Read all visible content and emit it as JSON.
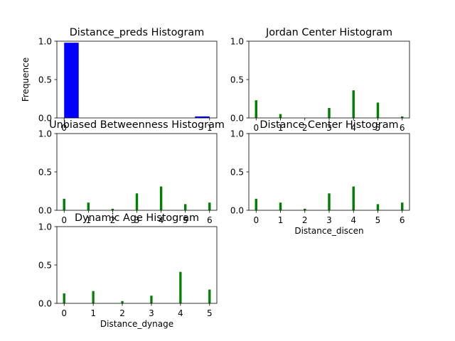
{
  "chart_data": [
    {
      "type": "bar",
      "title": "Distance_preds Histogram",
      "xlabel": "",
      "ylabel": "Frequence",
      "ylim": [
        0,
        1
      ],
      "xlim": [
        -0.05,
        1.05
      ],
      "yticks": [
        0.0,
        0.5,
        1.0
      ],
      "ytick_labels": [
        "0.0",
        "0.5",
        "1.0"
      ],
      "xticks": [
        0,
        1
      ],
      "xtick_labels": [
        "0",
        "1"
      ],
      "bar_width": 0.1,
      "x": [
        0.05,
        0.95
      ],
      "values": [
        0.98,
        0.02
      ],
      "color": "#0000ff"
    },
    {
      "type": "bar",
      "title": "Jordan Center Histogram",
      "xlabel": "",
      "ylabel": "",
      "ylim": [
        0,
        1
      ],
      "xlim": [
        -0.3,
        6.3
      ],
      "yticks": [
        0.0,
        0.5,
        1.0
      ],
      "ytick_labels": [
        "0.0",
        "0.5",
        "1.0"
      ],
      "xticks": [
        0,
        1,
        2,
        3,
        4,
        5,
        6
      ],
      "xtick_labels": [
        "0",
        "1",
        "2",
        "3",
        "4",
        "5",
        "6"
      ],
      "bar_width": 0.1,
      "x": [
        0,
        1,
        3,
        4,
        5,
        6
      ],
      "values": [
        0.23,
        0.05,
        0.13,
        0.36,
        0.2,
        0.02
      ],
      "color": "#008000"
    },
    {
      "type": "bar",
      "title": "Unbiased Betweenness Histogram",
      "xlabel": "",
      "ylabel": "",
      "ylim": [
        0,
        1
      ],
      "xlim": [
        -0.3,
        6.3
      ],
      "yticks": [
        0.0,
        0.5,
        1.0
      ],
      "ytick_labels": [
        "0.0",
        "0.5",
        "1.0"
      ],
      "xticks": [
        0,
        1,
        2,
        3,
        4,
        5,
        6
      ],
      "xtick_labels": [
        "0",
        "1",
        "2",
        "3",
        "4",
        "5",
        "6"
      ],
      "bar_width": 0.1,
      "x": [
        0,
        1,
        2,
        3,
        4,
        5,
        6
      ],
      "values": [
        0.15,
        0.1,
        0.02,
        0.22,
        0.31,
        0.08,
        0.1
      ],
      "color": "#008000"
    },
    {
      "type": "bar",
      "title": "Distance Center Histogram",
      "xlabel": "Distance_discen",
      "ylabel": "",
      "ylim": [
        0,
        1
      ],
      "xlim": [
        -0.3,
        6.3
      ],
      "yticks": [
        0.0,
        0.5,
        1.0
      ],
      "ytick_labels": [
        "0.0",
        "0.5",
        "1.0"
      ],
      "xticks": [
        0,
        1,
        2,
        3,
        4,
        5,
        6
      ],
      "xtick_labels": [
        "0",
        "1",
        "2",
        "3",
        "4",
        "5",
        "6"
      ],
      "bar_width": 0.1,
      "x": [
        0,
        1,
        2,
        3,
        4,
        5,
        6
      ],
      "values": [
        0.15,
        0.1,
        0.02,
        0.22,
        0.31,
        0.08,
        0.1
      ],
      "color": "#008000"
    },
    {
      "type": "bar",
      "title": "Dynamic Age Histogram",
      "xlabel": "Distance_dynage",
      "ylabel": "",
      "ylim": [
        0,
        1
      ],
      "xlim": [
        -0.25,
        5.25
      ],
      "yticks": [
        0.0,
        0.5,
        1.0
      ],
      "ytick_labels": [
        "0.0",
        "0.5",
        "1.0"
      ],
      "xticks": [
        0,
        1,
        2,
        3,
        4,
        5
      ],
      "xtick_labels": [
        "0",
        "1",
        "2",
        "3",
        "4",
        "5"
      ],
      "bar_width": 0.08,
      "x": [
        0,
        1,
        2,
        3,
        4,
        5
      ],
      "values": [
        0.13,
        0.16,
        0.03,
        0.1,
        0.41,
        0.18
      ],
      "color": "#008000"
    }
  ]
}
